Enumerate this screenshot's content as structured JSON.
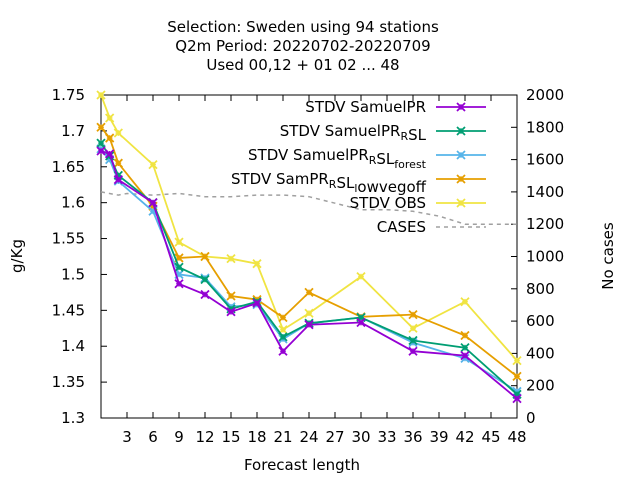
{
  "chart_data": {
    "type": "line",
    "title_lines": [
      "Selection: Sweden using    94 stations",
      "Q2m   Period: 20220702-20220709",
      "Used  00,12  + 01 02 ... 48"
    ],
    "xlabel": "Forecast length",
    "ylabel": "g/Kg",
    "y2label": "No cases",
    "xlim": [
      0,
      48
    ],
    "ylim": [
      1.3,
      1.75
    ],
    "y2lim": [
      0,
      2000
    ],
    "x_ticks": [
      "3",
      "6",
      "9",
      "12",
      "15",
      "18",
      "21",
      "24",
      "27",
      "30",
      "33",
      "36",
      "39",
      "42",
      "45",
      "48"
    ],
    "y_ticks": [
      "1.3",
      "1.35",
      "1.4",
      "1.45",
      "1.5",
      "1.55",
      "1.6",
      "1.65",
      "1.7",
      "1.75"
    ],
    "y2_ticks": [
      "0",
      "200",
      "400",
      "600",
      "800",
      "1000",
      "1200",
      "1400",
      "1600",
      "1800",
      "2000"
    ],
    "grid": false,
    "legend_position": "top-right",
    "series": [
      {
        "name": "STDV SamuelPR",
        "axis": "y",
        "color": "#9400d3",
        "marker": "x",
        "x": [
          0,
          1,
          2,
          6,
          9,
          12,
          15,
          18,
          21,
          24,
          30,
          36,
          42,
          48
        ],
        "y": [
          1.672,
          1.668,
          1.632,
          1.6,
          1.487,
          1.472,
          1.448,
          1.46,
          1.393,
          1.43,
          1.433,
          1.393,
          1.387,
          1.327
        ]
      },
      {
        "name": "STDV SamuelPR_RSL",
        "axis": "y",
        "color": "#009e73",
        "marker": "x",
        "x": [
          0,
          1,
          2,
          6,
          9,
          12,
          15,
          18,
          21,
          24,
          30,
          36,
          42,
          48
        ],
        "y": [
          1.683,
          1.665,
          1.638,
          1.6,
          1.51,
          1.493,
          1.452,
          1.462,
          1.413,
          1.432,
          1.44,
          1.408,
          1.398,
          1.333
        ]
      },
      {
        "name": "STDV SamuelPR_RSL_forest",
        "axis": "y",
        "color": "#56b4e9",
        "marker": "x",
        "x": [
          0,
          1,
          2,
          6,
          9,
          12,
          15,
          18,
          21,
          24,
          30,
          36,
          42,
          48
        ],
        "y": [
          1.675,
          1.66,
          1.63,
          1.588,
          1.5,
          1.495,
          1.455,
          1.458,
          1.41,
          1.432,
          1.44,
          1.405,
          1.383,
          1.337
        ]
      },
      {
        "name": "STDV SamPR_RSL_lowvegoff",
        "axis": "y",
        "color": "#e69f00",
        "marker": "x",
        "x": [
          0,
          1,
          2,
          6,
          9,
          12,
          15,
          18,
          21,
          24,
          30,
          36,
          42,
          48
        ],
        "y": [
          1.705,
          1.69,
          1.655,
          1.595,
          1.523,
          1.525,
          1.47,
          1.465,
          1.44,
          1.475,
          1.441,
          1.444,
          1.415,
          1.358
        ]
      },
      {
        "name": "STDV OBS",
        "axis": "y",
        "color": "#f0e442",
        "marker": "x",
        "x": [
          0,
          1,
          2,
          6,
          9,
          12,
          15,
          18,
          21,
          24,
          30,
          36,
          42,
          48
        ],
        "y": [
          1.75,
          1.718,
          1.697,
          1.653,
          1.545,
          1.525,
          1.522,
          1.515,
          1.423,
          1.446,
          1.497,
          1.425,
          1.462,
          1.38
        ]
      },
      {
        "name": "CASES",
        "axis": "y2",
        "color": "#a0a0a0",
        "dashed": true,
        "x": [
          0,
          2,
          3,
          6,
          9,
          12,
          15,
          18,
          21,
          24,
          27,
          30,
          33,
          36,
          39,
          42,
          45,
          48
        ],
        "y": [
          1400,
          1380,
          1390,
          1380,
          1390,
          1370,
          1370,
          1380,
          1380,
          1370,
          1330,
          1290,
          1290,
          1280,
          1250,
          1200,
          1200,
          1200
        ]
      }
    ]
  }
}
